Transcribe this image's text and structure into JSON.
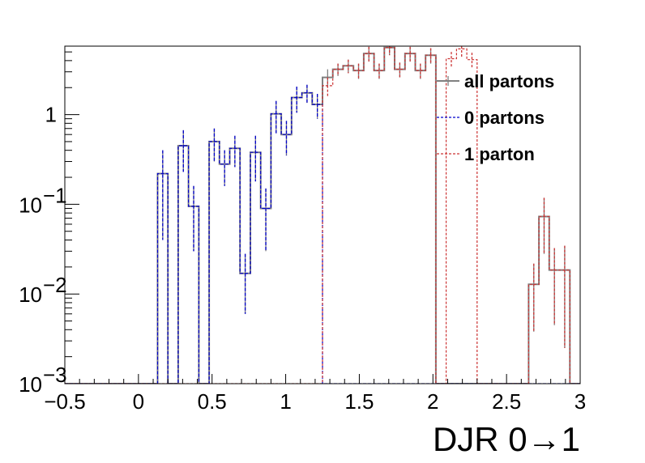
{
  "chart_data": {
    "type": "histogram",
    "xlabel": "DJR 0→1",
    "xlim": [
      -0.5,
      3.0
    ],
    "ylim": [
      0.001,
      5.8
    ],
    "ylog": true,
    "legend_position": "top-right",
    "x_ticks": [
      "−0.5",
      "0",
      "0.5",
      "1",
      "1.5",
      "2",
      "2.5",
      "3"
    ],
    "x_tick_values": [
      -0.5,
      0,
      0.5,
      1,
      1.5,
      2,
      2.5,
      3
    ],
    "y_ticks": [
      {
        "base": "1",
        "exp": "",
        "value": 1
      },
      {
        "base": "10",
        "exp": "−1",
        "value": 0.1
      },
      {
        "base": "10",
        "exp": "−2",
        "value": 0.01
      },
      {
        "base": "10",
        "exp": "−3",
        "value": 0.001
      }
    ],
    "bin_edges": [
      -0.5,
      -0.43,
      -0.36,
      -0.29,
      -0.22,
      -0.15,
      -0.08,
      -0.01,
      0.06,
      0.13,
      0.2,
      0.27,
      0.34,
      0.41,
      0.48,
      0.55,
      0.62,
      0.69,
      0.76,
      0.83,
      0.9,
      0.97,
      1.04,
      1.11,
      1.18,
      1.25,
      1.32,
      1.39,
      1.46,
      1.53,
      1.6,
      1.67,
      1.74,
      1.81,
      1.88,
      1.95,
      2.02,
      2.09,
      2.16,
      2.23,
      2.3,
      2.37,
      2.44,
      2.51,
      2.58,
      2.65,
      2.72,
      2.79,
      2.86,
      2.93,
      3.0
    ],
    "series": [
      {
        "name": "all partons",
        "color": "#808080",
        "style": "solid",
        "values": [
          0,
          0,
          0,
          0,
          0,
          0,
          0,
          0,
          0,
          0.22,
          0,
          0.45,
          0.095,
          0,
          0.5,
          0.28,
          0.42,
          0.017,
          0.38,
          0.09,
          1.02,
          0.6,
          1.55,
          1.75,
          1.3,
          2.6,
          3.2,
          3.5,
          3.1,
          4.8,
          3.1,
          5.6,
          3.2,
          4.8,
          3.1,
          4.6,
          0,
          0,
          0,
          0,
          0,
          0,
          0,
          0,
          0,
          0.0128,
          0.073,
          0.0185,
          0.0185,
          0
        ],
        "errors": [
          0,
          0,
          0,
          0,
          0,
          0,
          0,
          0,
          0,
          0.18,
          0,
          0.22,
          0.065,
          0,
          0.2,
          0.12,
          0.16,
          0.011,
          0.2,
          0.06,
          0.4,
          0.25,
          0.5,
          0.4,
          0.4,
          0.6,
          0.5,
          0.6,
          0.6,
          0.9,
          0.6,
          1.0,
          0.6,
          0.9,
          0.6,
          0.9,
          0,
          0,
          0,
          0,
          0,
          0,
          0,
          0,
          0,
          0.009,
          0.045,
          0.014,
          0.016,
          0
        ]
      },
      {
        "name": "0 partons",
        "color": "#0000cc",
        "style": "dashed",
        "values": [
          0,
          0,
          0,
          0,
          0,
          0,
          0,
          0,
          0,
          0.22,
          0,
          0.45,
          0.095,
          0,
          0.5,
          0.28,
          0.42,
          0.017,
          0.38,
          0.09,
          1.02,
          0.6,
          1.55,
          1.75,
          1.3,
          0.0007,
          0,
          0,
          0,
          0,
          0,
          0,
          0,
          0,
          0,
          0,
          0,
          0,
          0,
          0,
          0,
          0,
          0,
          0,
          0,
          0,
          0,
          0,
          0,
          0
        ],
        "errors": [
          0,
          0,
          0,
          0,
          0,
          0,
          0,
          0,
          0,
          0.18,
          0,
          0.22,
          0.065,
          0,
          0.2,
          0.12,
          0.16,
          0.011,
          0.2,
          0.06,
          0.4,
          0.25,
          0.5,
          0.4,
          0.4,
          0,
          0,
          0,
          0,
          0,
          0,
          0,
          0,
          0,
          0,
          0,
          0,
          0,
          0,
          0,
          0,
          0,
          0,
          0,
          0,
          0,
          0,
          0,
          0,
          0
        ]
      },
      {
        "name": "1 parton",
        "color": "#cc3333",
        "style": "dashed",
        "values": [
          0,
          0,
          0,
          0,
          0,
          0,
          0,
          0,
          0,
          0,
          0,
          0,
          0,
          0,
          0,
          0,
          0,
          0,
          0,
          0,
          0,
          0,
          0,
          0,
          0.0007,
          2.1,
          3.2,
          3.5,
          3.1,
          4.8,
          3.1,
          5.6,
          3.2,
          4.8,
          3.1,
          4.6,
          0,
          4.2,
          5.4,
          4.1,
          0,
          0,
          0,
          0,
          0,
          0.0128,
          0.073,
          0.0185,
          0.0185,
          0
        ],
        "errors": [
          0,
          0,
          0,
          0,
          0,
          0,
          0,
          0,
          0,
          0,
          0,
          0,
          0,
          0,
          0,
          0,
          0,
          0,
          0,
          0,
          0,
          0,
          0,
          0,
          0,
          0.5,
          0.5,
          0.6,
          0.6,
          0.9,
          0.6,
          1.0,
          0.6,
          0.9,
          0.6,
          0.9,
          0,
          0.8,
          1.0,
          0.8,
          0,
          0,
          0,
          0,
          0,
          0.009,
          0.045,
          0.014,
          0.016,
          0
        ]
      }
    ]
  }
}
